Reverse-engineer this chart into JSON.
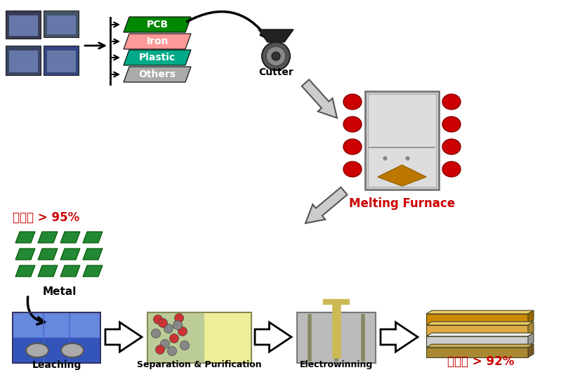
{
  "bg_color": "#ffffff",
  "labels": {
    "PCB": "PCB",
    "Iron": "Iron",
    "Plastic": "Plastic",
    "Others": "Others",
    "Cutter": "Cutter",
    "MeltingFurnace": "Melting Furnace",
    "Metal": "Metal",
    "recovery1": "회수율 > 95%",
    "Leaching": "Leaching",
    "SepPur": "Separation & Purification",
    "Electrowinning": "Electrowinning",
    "recovery2": "회수율 > 92%"
  },
  "colors": {
    "PCB": "#008800",
    "Iron": "#ff9999",
    "Plastic": "#00aa88",
    "Others": "#aaaaaa",
    "red_circle": "#cc0000",
    "furnace_body": "#cccccc",
    "furnace_body2": "#dddddd",
    "furnace_gold": "#bb7700",
    "metal_green": "#228833",
    "leach_blue_dark": "#3355bb",
    "leach_blue_light": "#6688dd",
    "leach_gray": "#aaaaaa",
    "sep_green": "#bbcc99",
    "sep_yellow": "#eeee99",
    "sep_dot_red": "#cc3333",
    "sep_dot_gray": "#888888",
    "electro_gray": "#bbbbbb",
    "electro_rod_yellow": "#ccbb55",
    "electro_rod_dark": "#888866",
    "bar_gold_dark": "#cc8800",
    "bar_gold_light": "#ddaa44",
    "bar_gold_top": "#eecc66",
    "bar_silver": "#cccccc",
    "bar_silver_top": "#eeeeee",
    "bar_brown": "#aa8833",
    "red_text": "#cc0000",
    "black": "#000000",
    "white": "#ffffff",
    "arrow_gray": "#aaaaaa",
    "arrow_outline": "#555555"
  }
}
